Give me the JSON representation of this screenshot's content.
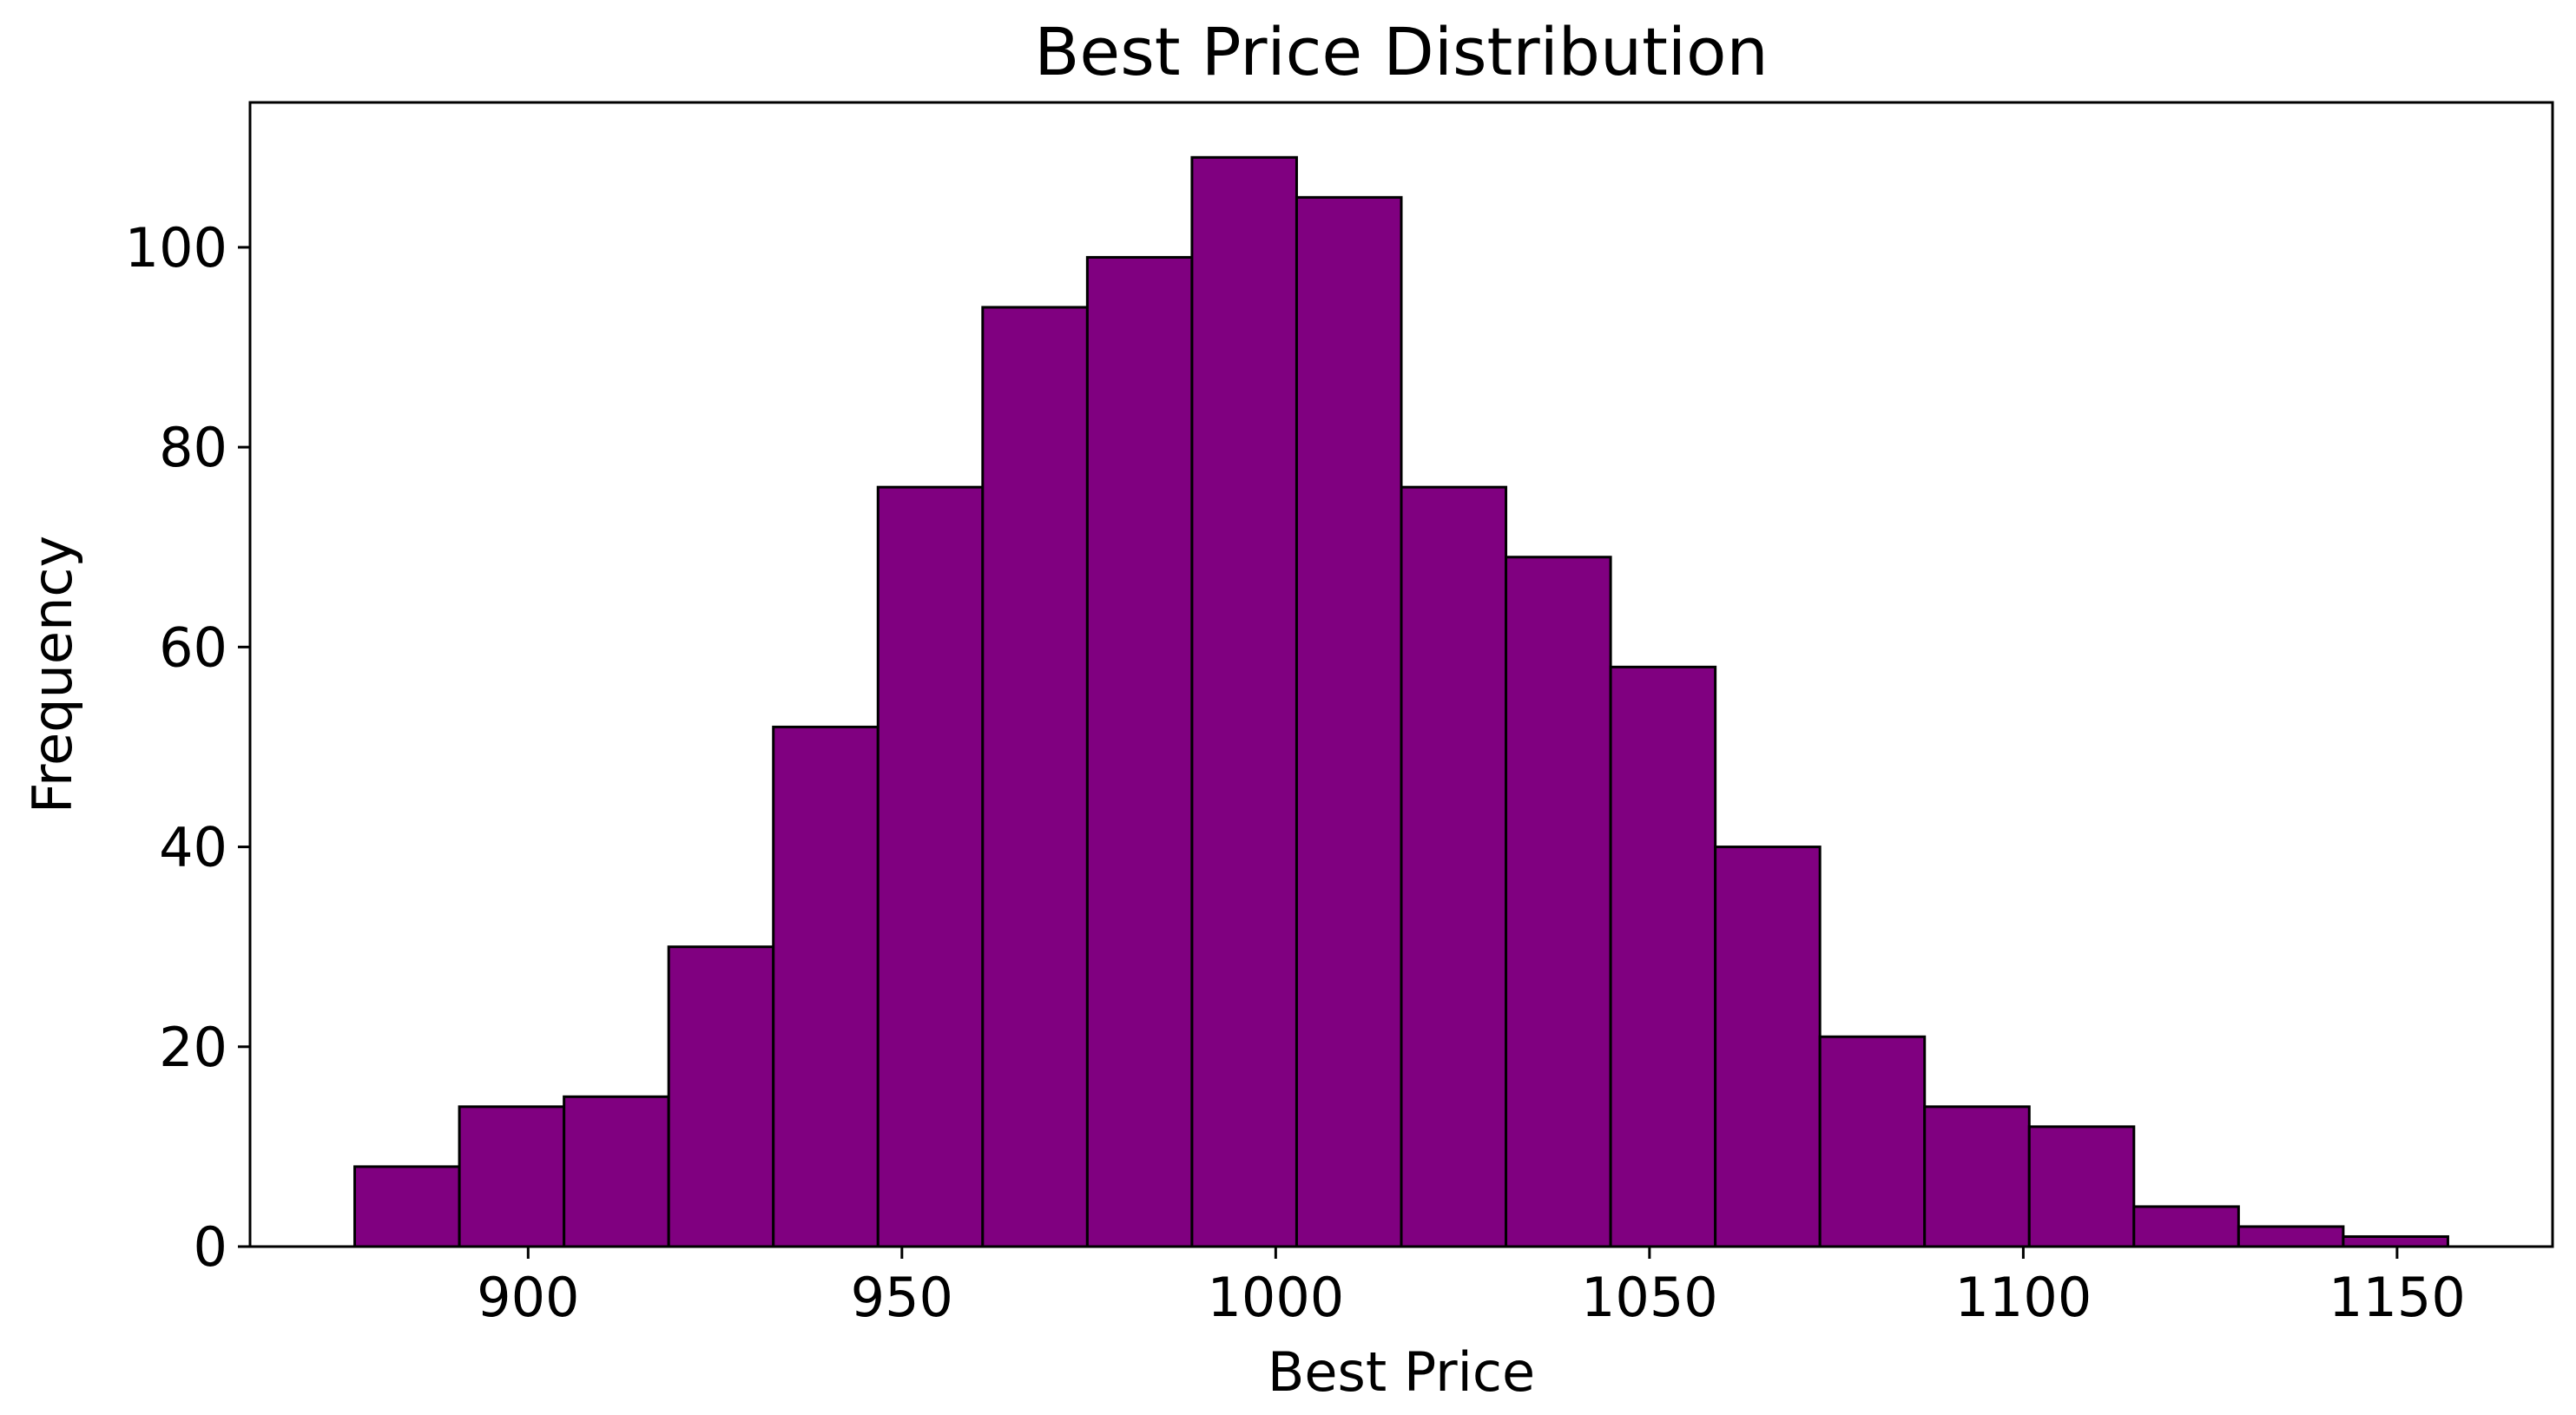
{
  "chart_data": {
    "type": "bar",
    "title": "Best Price Distribution",
    "xlabel": "Best Price",
    "ylabel": "Frequency",
    "bar_color": "#800080",
    "edge_color": "#000000",
    "bin_edges": [
      876.8,
      890.8,
      904.8,
      918.8,
      932.8,
      946.8,
      960.8,
      974.8,
      988.8,
      1002.8,
      1016.8,
      1030.8,
      1044.8,
      1058.8,
      1072.8,
      1086.8,
      1100.8,
      1114.8,
      1128.8,
      1142.8,
      1156.8
    ],
    "values": [
      8,
      14,
      15,
      30,
      52,
      76,
      94,
      99,
      109,
      105,
      76,
      69,
      58,
      40,
      21,
      14,
      12,
      4,
      2,
      1
    ],
    "xlim": [
      862.8,
      1170.8
    ],
    "ylim": [
      0,
      114.5
    ],
    "xticks": [
      900,
      950,
      1000,
      1050,
      1100,
      1150
    ],
    "yticks": [
      0,
      20,
      40,
      60,
      80,
      100
    ],
    "grid": false,
    "legend": false
  }
}
